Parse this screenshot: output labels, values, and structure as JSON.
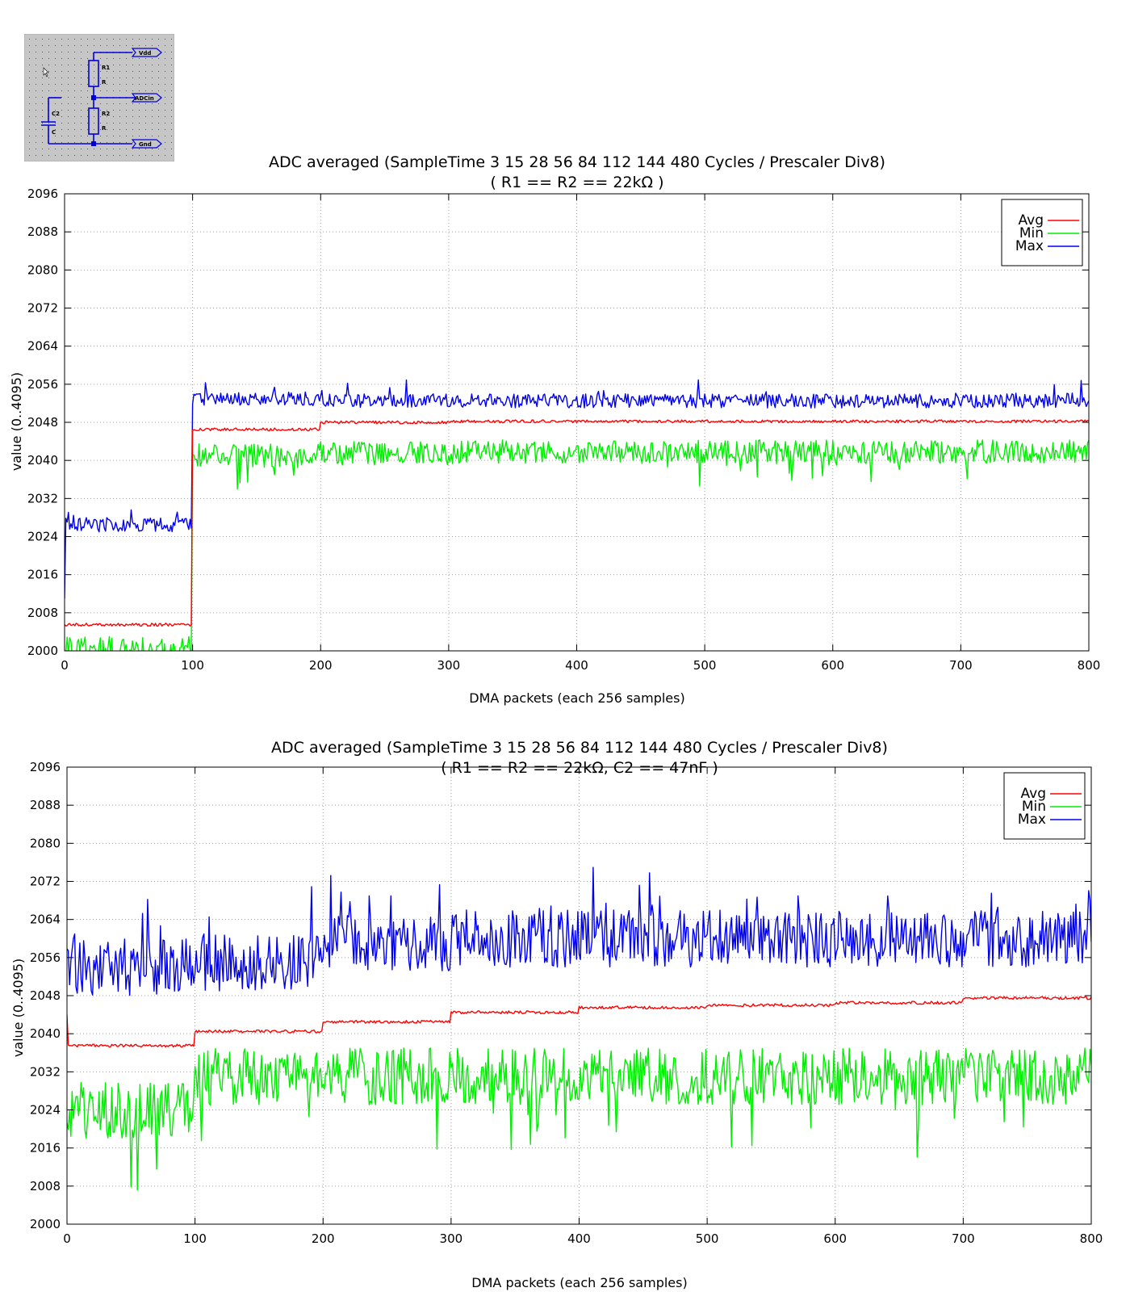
{
  "schematic": {
    "labels": [
      "Vdd",
      "R1",
      "R",
      "ADCin",
      "C2",
      "C",
      "R2",
      "R",
      "Gnd"
    ]
  },
  "chart_data": [
    {
      "type": "line",
      "title": "ADC averaged (SampleTime 3 15 28 56 84 112 144 480 Cycles / Prescaler Div8)",
      "subtitle": "( R1 == R2 == 22kΩ )",
      "xlabel": "DMA packets (each 256 samples)",
      "ylabel": "value (0..4095)",
      "xlim": [
        0,
        800
      ],
      "ylim": [
        2000,
        2096
      ],
      "xticks": [
        0,
        100,
        200,
        300,
        400,
        500,
        600,
        700,
        800
      ],
      "yticks": [
        2000,
        2008,
        2016,
        2024,
        2032,
        2040,
        2048,
        2056,
        2064,
        2072,
        2080,
        2088,
        2096
      ],
      "grid": true,
      "legend": "top-right",
      "series": [
        {
          "name": "Avg",
          "color": "#ff0000",
          "approx_segments": [
            [
              0,
              100,
              2005.5
            ],
            [
              100,
              200,
              2046.5
            ],
            [
              200,
              300,
              2048
            ],
            [
              300,
              800,
              2048.2
            ]
          ],
          "noise": 0.3
        },
        {
          "name": "Min",
          "color": "#00ee00",
          "approx_segments": [
            [
              0,
              100,
              2000.5
            ],
            [
              100,
              200,
              2041
            ],
            [
              200,
              300,
              2041.5
            ],
            [
              300,
              800,
              2041.8
            ]
          ],
          "noise": 2.5
        },
        {
          "name": "Max",
          "color": "#0000ee",
          "approx_segments": [
            [
              0,
              100,
              2026.5
            ],
            [
              100,
              200,
              2053
            ],
            [
              200,
              800,
              2052.5
            ]
          ],
          "noise": 1.5
        }
      ]
    },
    {
      "type": "line",
      "title": "ADC averaged (SampleTime 3 15 28 56 84 112 144 480 Cycles / Prescaler Div8)",
      "subtitle": "( R1 == R2 == 22kΩ, C2 == 47nF )",
      "xlabel": "DMA packets (each 256 samples)",
      "ylabel": "value (0..4095)",
      "xlim": [
        0,
        800
      ],
      "ylim": [
        2000,
        2096
      ],
      "xticks": [
        0,
        100,
        200,
        300,
        400,
        500,
        600,
        700,
        800
      ],
      "yticks": [
        2000,
        2008,
        2016,
        2024,
        2032,
        2040,
        2048,
        2056,
        2064,
        2072,
        2080,
        2088,
        2096
      ],
      "grid": true,
      "legend": "top-right",
      "series": [
        {
          "name": "Avg",
          "color": "#ff0000",
          "approx_segments": [
            [
              0,
              100,
              2037.5
            ],
            [
              100,
              200,
              2040.5
            ],
            [
              200,
              300,
              2042.5
            ],
            [
              300,
              400,
              2044.5
            ],
            [
              400,
              500,
              2045.5
            ],
            [
              500,
              600,
              2046
            ],
            [
              600,
              700,
              2046.5
            ],
            [
              700,
              800,
              2047.5
            ]
          ],
          "noise": 0.3
        },
        {
          "name": "Min",
          "color": "#00ee00",
          "approx_segments": [
            [
              0,
              100,
              2024
            ],
            [
              100,
              200,
              2031
            ],
            [
              200,
              300,
              2031
            ],
            [
              300,
              800,
              2031
            ]
          ],
          "noise": 6
        },
        {
          "name": "Max",
          "color": "#0000ee",
          "approx_segments": [
            [
              0,
              100,
              2054
            ],
            [
              100,
              200,
              2055
            ],
            [
              200,
              300,
              2059
            ],
            [
              300,
              800,
              2060
            ]
          ],
          "noise": 6
        }
      ]
    }
  ]
}
